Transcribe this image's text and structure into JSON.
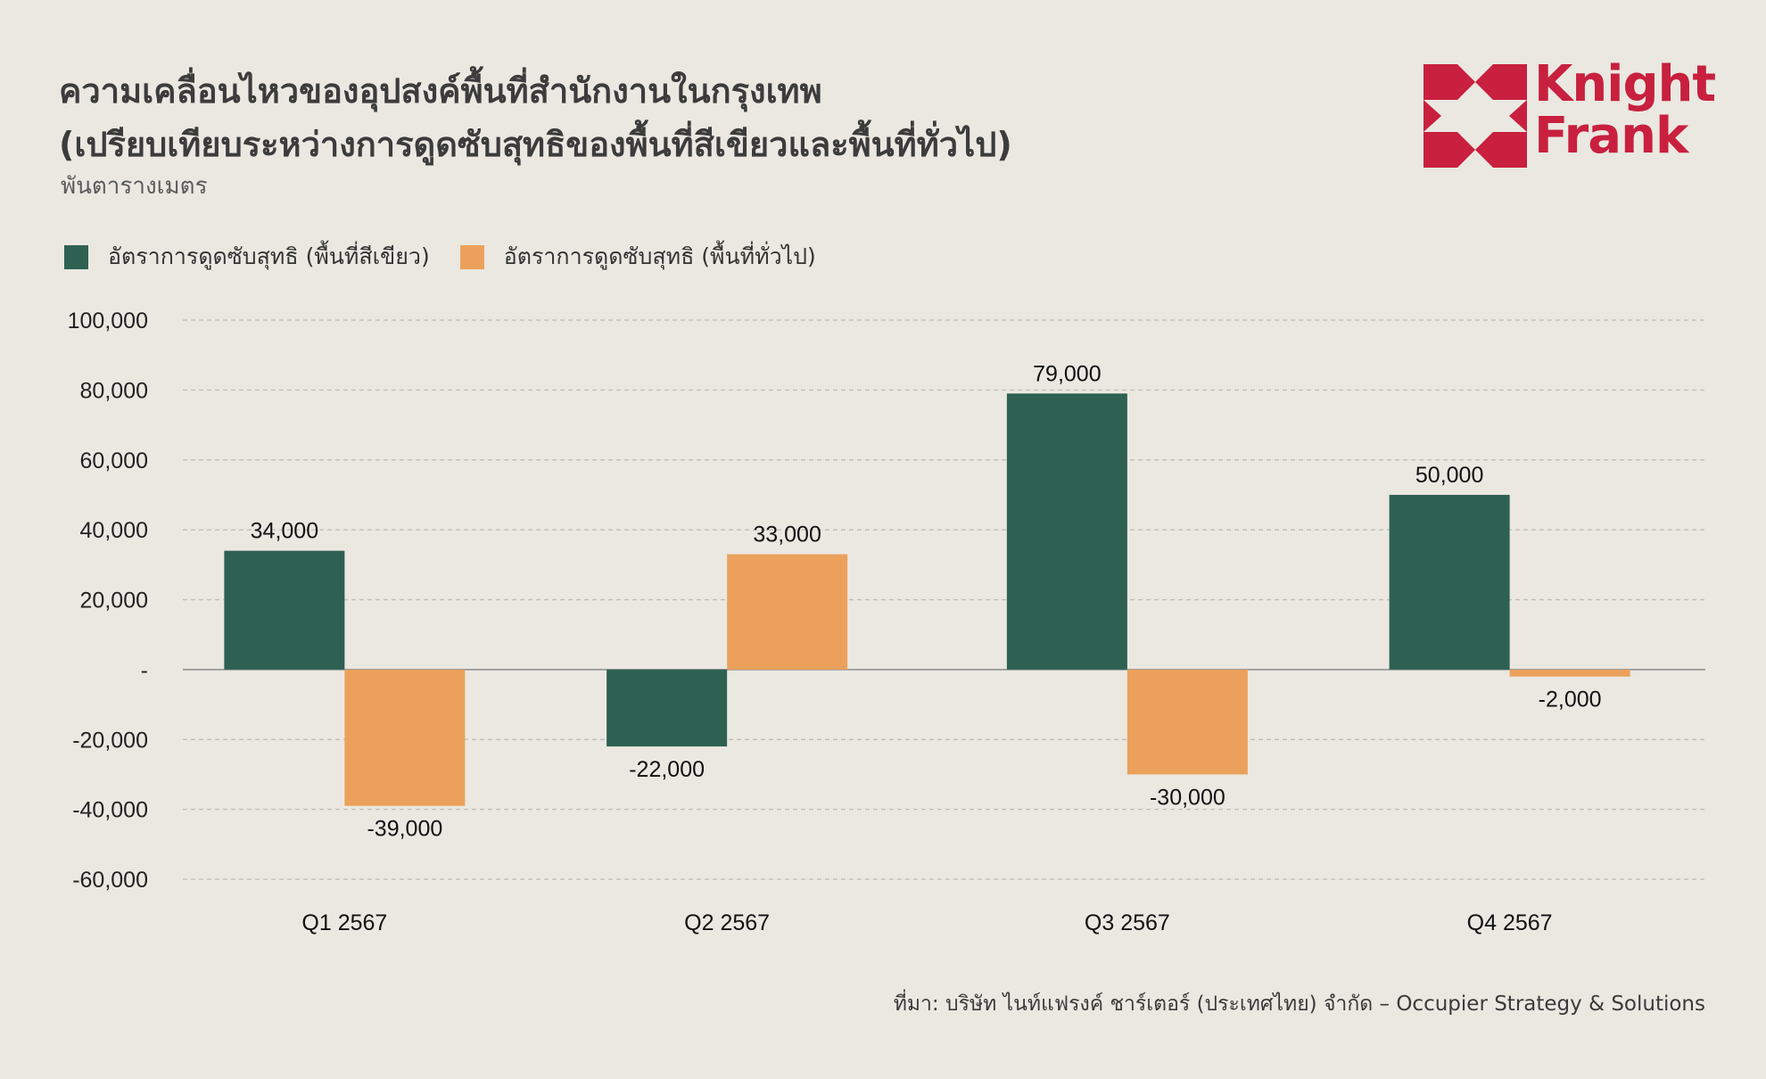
{
  "header": {
    "title_line1": "ความเคลื่อนไหวของอุปสงค์พื้นที่สำนักงานในกรุงเทพ",
    "title_line2": "(เปรียบเทียบระหว่างการดูดซับสุทธิของพื้นที่สีเขียวและพื้นที่ทั่วไป)",
    "unit": "พันตารางเมตร"
  },
  "logo": {
    "line1": "Knight",
    "line2": "Frank",
    "color": "#C8203E",
    "icon_name": "knight-frank-logo-icon"
  },
  "legend": [
    {
      "label": "อัตราการดูดซับสุทธิ (พื้นที่สีเขียว)",
      "color": "#2E6152"
    },
    {
      "label": "อัตราการดูดซับสุทธิ (พื้นที่ทั่วไป)",
      "color": "#EBA15C"
    }
  ],
  "chart_data": {
    "type": "bar",
    "categories": [
      "Q1 2567",
      "Q2 2567",
      "Q3 2567",
      "Q4 2567"
    ],
    "series": [
      {
        "name": "อัตราการดูดซับสุทธิ (พื้นที่สีเขียว)",
        "color": "#2E6152",
        "values": [
          34000,
          -22000,
          79000,
          50000
        ],
        "labels": [
          "34,000",
          "-22,000",
          "79,000",
          "50,000"
        ]
      },
      {
        "name": "อัตราการดูดซับสุทธิ (พื้นที่ทั่วไป)",
        "color": "#EBA15C",
        "values": [
          -39000,
          33000,
          -30000,
          -2000
        ],
        "labels": [
          "-39,000",
          "33,000",
          "-30,000",
          "-2,000"
        ]
      }
    ],
    "ylim": [
      -60000,
      100000
    ],
    "yticks": [
      100000,
      80000,
      60000,
      40000,
      20000,
      0,
      -20000,
      -40000,
      -60000
    ],
    "ytick_labels": [
      "100,000",
      "80,000",
      "60,000",
      "40,000",
      "20,000",
      "-",
      "-20,000",
      "-40,000",
      "-60,000"
    ],
    "grid": true,
    "legend_position": "top-left"
  },
  "source": "ที่มา: บริษัท ไนท์แฟรงค์ ชาร์เตอร์ (ประเทศไทย) จำกัด – Occupier Strategy & Solutions"
}
